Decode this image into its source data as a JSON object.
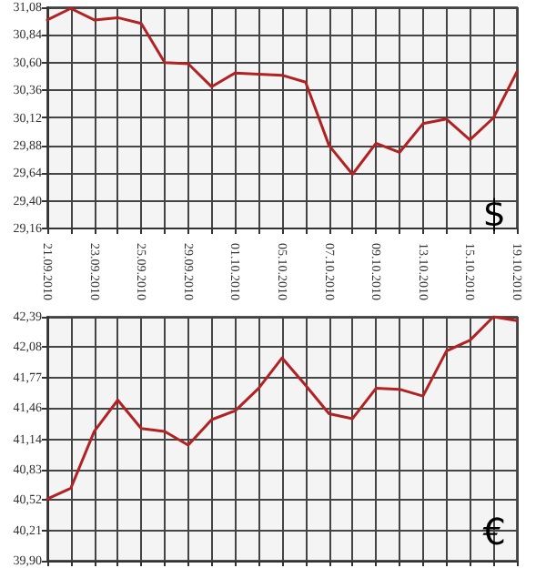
{
  "chart_data": [
    {
      "type": "line",
      "categories": [
        "21.09.2010",
        null,
        "23.09.2010",
        null,
        "25.09.2010",
        null,
        "29.09.2010",
        null,
        "01.10.2010",
        null,
        "05.10.2010",
        null,
        "07.10.2010",
        null,
        "09.10.2010",
        null,
        "13.10.2010",
        null,
        "15.10.2010",
        null,
        "19.10.2010"
      ],
      "series": [
        {
          "color": "#b22222",
          "values": [
            30.97,
            31.07,
            30.97,
            30.99,
            30.94,
            30.6,
            30.59,
            30.39,
            30.51,
            30.5,
            30.49,
            30.43,
            29.88,
            29.63,
            29.9,
            29.82,
            30.07,
            30.11,
            29.93,
            30.12,
            30.52
          ]
        }
      ],
      "ylim": [
        29.16,
        31.08
      ],
      "yticks": [
        {
          "value": 29.16,
          "label": "29,16"
        },
        {
          "value": 29.4,
          "label": "29,40"
        },
        {
          "value": 29.64,
          "label": "29,64"
        },
        {
          "value": 29.88,
          "label": "29,88"
        },
        {
          "value": 30.12,
          "label": "30,12"
        },
        {
          "value": 30.36,
          "label": "30,36"
        },
        {
          "value": 30.6,
          "label": "30,60"
        },
        {
          "value": 30.84,
          "label": "30,84"
        },
        {
          "value": 31.08,
          "label": "31,08"
        }
      ],
      "grid": true,
      "marker": "none",
      "line_style": "solid",
      "annotations": [
        "$"
      ]
    },
    {
      "type": "line",
      "categories": [
        "21.09.2010",
        null,
        "23.09.2010",
        null,
        "25.09.2010",
        null,
        "29.09.2010",
        null,
        "01.10.2010",
        null,
        "05.10.2010",
        null,
        "07.10.2010",
        null,
        "09.10.2010",
        null,
        "13.10.2010",
        null,
        "15.10.2010",
        null,
        "19.10.2010"
      ],
      "series": [
        {
          "color": "#b22222",
          "values": [
            40.53,
            40.64,
            41.22,
            41.54,
            41.25,
            41.22,
            41.08,
            41.34,
            41.43,
            41.66,
            41.97,
            41.69,
            41.4,
            41.35,
            41.66,
            41.65,
            41.58,
            42.04,
            42.15,
            42.39,
            42.35
          ]
        }
      ],
      "ylim": [
        39.9,
        42.39
      ],
      "yticks": [
        {
          "value": 39.9,
          "label": "39,90"
        },
        {
          "value": 40.21,
          "label": "40,21"
        },
        {
          "value": 40.52,
          "label": "40,52"
        },
        {
          "value": 40.83,
          "label": "40,83"
        },
        {
          "value": 41.14,
          "label": "41,14"
        },
        {
          "value": 41.46,
          "label": "41,46"
        },
        {
          "value": 41.77,
          "label": "41,77"
        },
        {
          "value": 42.08,
          "label": "42,08"
        },
        {
          "value": 42.39,
          "label": "42,39"
        }
      ],
      "grid": true,
      "marker": "none",
      "line_style": "solid",
      "tick_labels": "y",
      "annotations": [
        "€"
      ]
    }
  ]
}
